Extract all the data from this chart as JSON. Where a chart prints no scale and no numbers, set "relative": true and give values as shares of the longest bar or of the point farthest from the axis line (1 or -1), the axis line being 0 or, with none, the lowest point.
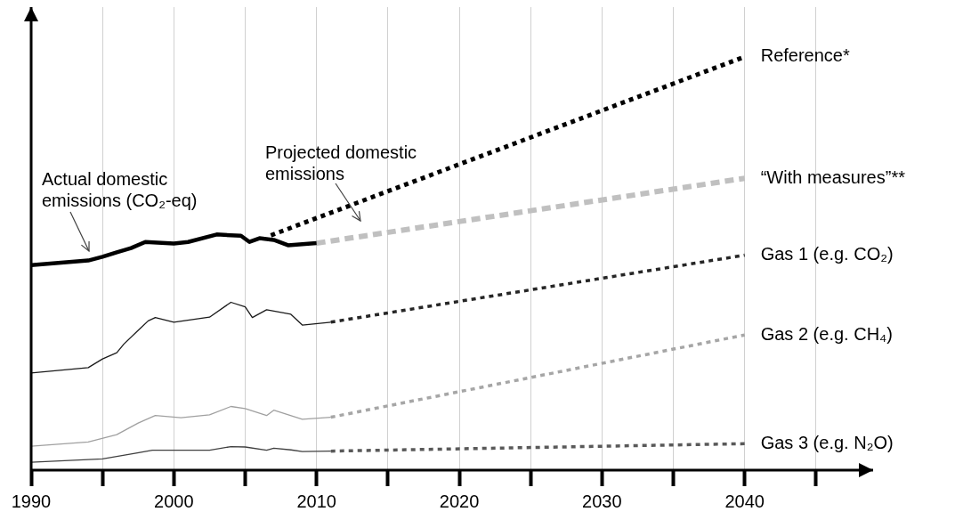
{
  "chart_data": {
    "type": "line",
    "relative": true,
    "xlim": [
      1990,
      2049
    ],
    "xticks": [
      1990,
      {
        "value": 1995,
        "label": null
      },
      2000,
      {
        "value": 2005,
        "label": null
      },
      2010,
      {
        "value": 2015,
        "label": null
      },
      2020,
      {
        "value": 2025,
        "label": null
      },
      2030,
      {
        "value": 2035,
        "label": null
      },
      2040,
      {
        "value": 2045,
        "label": null
      }
    ],
    "grid": "x",
    "legend": false,
    "marker": "none",
    "series": [
      {
        "color": "#000000",
        "line_style": "solid",
        "x": [
          1990,
          1994,
          1995,
          1996,
          1997,
          1998,
          2000,
          2001,
          2003,
          2004.7,
          2005.3,
          2006,
          2007,
          2008,
          2010
        ],
        "values": [
          0.496,
          0.507,
          0.516,
          0.527,
          0.537,
          0.552,
          0.548,
          0.552,
          0.57,
          0.567,
          0.552,
          0.561,
          0.557,
          0.544,
          0.549
        ]
      },
      {
        "name": "Reference*",
        "color": "#000000",
        "line_style": "dotted",
        "x": [
          2006.8,
          2040
        ],
        "values": [
          0.568,
          1
        ]
      },
      {
        "name": "“With measures”**",
        "color": "#c0c0c0",
        "line_style": "dashed",
        "x": [
          2010,
          2040
        ],
        "values": [
          0.549,
          0.706
        ]
      },
      {
        "color": "#1a1a1a",
        "line_style": "solid",
        "x": [
          1990,
          1994,
          1995,
          1996,
          1996.5,
          1997.5,
          1998.2,
          1998.7,
          2000,
          2002.5,
          2004,
          2005,
          2005.5,
          2006.5,
          2008.2,
          2009,
          2011
        ],
        "values": [
          0.235,
          0.248,
          0.269,
          0.284,
          0.305,
          0.338,
          0.361,
          0.369,
          0.358,
          0.37,
          0.406,
          0.395,
          0.369,
          0.388,
          0.377,
          0.351,
          0.358
        ]
      },
      {
        "name": "Gas 1 (e.g. CO₂)",
        "color": "#262626",
        "line_style": "dotted",
        "x": [
          2011,
          2040
        ],
        "values": [
          0.358,
          0.52
        ]
      },
      {
        "color": "#a0a0a0",
        "line_style": "solid",
        "x": [
          1990,
          1994,
          1996,
          1997.5,
          1998.7,
          2000.5,
          2002.5,
          2004,
          2005,
          2006.5,
          2007,
          2009,
          2011
        ],
        "values": [
          0.058,
          0.068,
          0.086,
          0.114,
          0.132,
          0.127,
          0.134,
          0.154,
          0.149,
          0.132,
          0.145,
          0.123,
          0.128
        ]
      },
      {
        "name": "Gas 2 (e.g. CH₄)",
        "color": "#a6a6a6",
        "line_style": "dotted",
        "x": [
          2011,
          2040
        ],
        "values": [
          0.128,
          0.327
        ]
      },
      {
        "color": "#404040",
        "line_style": "solid",
        "x": [
          1990,
          1995,
          1998.5,
          2002.5,
          2004,
          2005,
          2006.5,
          2007,
          2008.2,
          2009,
          2011
        ],
        "values": [
          0.019,
          0.027,
          0.048,
          0.048,
          0.057,
          0.056,
          0.048,
          0.053,
          0.049,
          0.045,
          0.046
        ]
      },
      {
        "name": "Gas 3 (e.g. N₂O)",
        "color": "#595959",
        "line_style": "dotted",
        "x": [
          2011,
          2040
        ],
        "values": [
          0.046,
          0.064
        ]
      }
    ],
    "annotations": [
      "Actual domestic emissions (CO₂-eq)",
      "Projected domestic emissions"
    ]
  }
}
